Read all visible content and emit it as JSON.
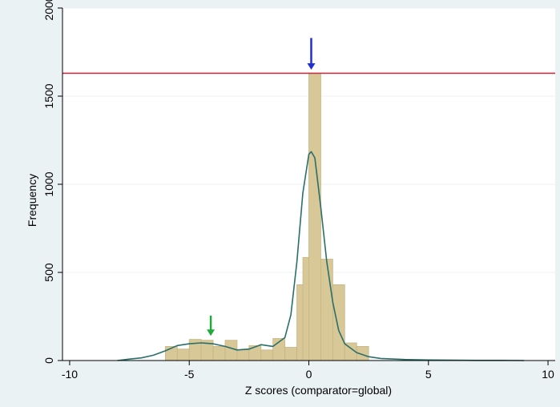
{
  "chart_data": {
    "type": "bar",
    "title": "",
    "xlabel": "Z scores (comparator=global)",
    "ylabel": "Frequency",
    "xlim": [
      -10.3,
      10.3
    ],
    "ylim": [
      0,
      2000
    ],
    "x_ticks": [
      -10,
      -5,
      0,
      5,
      10
    ],
    "y_ticks": [
      0,
      500,
      1000,
      1500,
      2000
    ],
    "grid": true,
    "bin_width": 0.5,
    "bins": [
      {
        "x0": -6.0,
        "value": 80
      },
      {
        "x0": -5.5,
        "value": 65
      },
      {
        "x0": -5.0,
        "value": 120
      },
      {
        "x0": -4.5,
        "value": 115
      },
      {
        "x0": -4.0,
        "value": 80
      },
      {
        "x0": -3.5,
        "value": 115
      },
      {
        "x0": -3.0,
        "value": 60
      },
      {
        "x0": -2.5,
        "value": 85
      },
      {
        "x0": -2.0,
        "value": 60
      },
      {
        "x0": -1.5,
        "value": 125
      },
      {
        "x0": -1.0,
        "value": 75
      },
      {
        "x0": -0.5,
        "value": 430
      },
      {
        "x0": -0.25,
        "value": 585
      },
      {
        "x0": 0.0,
        "value": 1630
      },
      {
        "x0": 0.5,
        "value": 575
      },
      {
        "x0": 1.0,
        "value": 430
      },
      {
        "x0": 1.5,
        "value": 100
      },
      {
        "x0": 2.0,
        "value": 80
      }
    ],
    "density_line": {
      "x": [
        -8,
        -7.5,
        -7,
        -6.5,
        -6,
        -5.5,
        -5,
        -4.5,
        -4,
        -3.5,
        -3,
        -2.5,
        -2,
        -1.5,
        -1,
        -0.75,
        -0.5,
        -0.25,
        0,
        0.1,
        0.25,
        0.5,
        0.75,
        1,
        1.25,
        1.5,
        2,
        2.5,
        3,
        4,
        5,
        6,
        7,
        8,
        9
      ],
      "y": [
        0,
        8,
        15,
        30,
        55,
        85,
        95,
        100,
        95,
        80,
        60,
        65,
        90,
        80,
        130,
        260,
        560,
        950,
        1170,
        1185,
        1150,
        870,
        560,
        330,
        170,
        95,
        45,
        22,
        12,
        6,
        3,
        2,
        1,
        1,
        0
      ]
    },
    "reference_line": {
      "y": 1630,
      "color": "#c0314a"
    },
    "arrows": [
      {
        "x": 0.1,
        "y_from": 1830,
        "y_to": 1650,
        "color": "#1f2fd6"
      },
      {
        "x": -4.1,
        "y_from": 255,
        "y_to": 140,
        "color": "#1faa3a"
      }
    ],
    "colors": {
      "bar_fill": "#d8c898",
      "bar_stroke": "#c6b582",
      "line": "#2a6f6a",
      "plot_background": "#ffffff",
      "grid": "#eef1f2"
    }
  }
}
